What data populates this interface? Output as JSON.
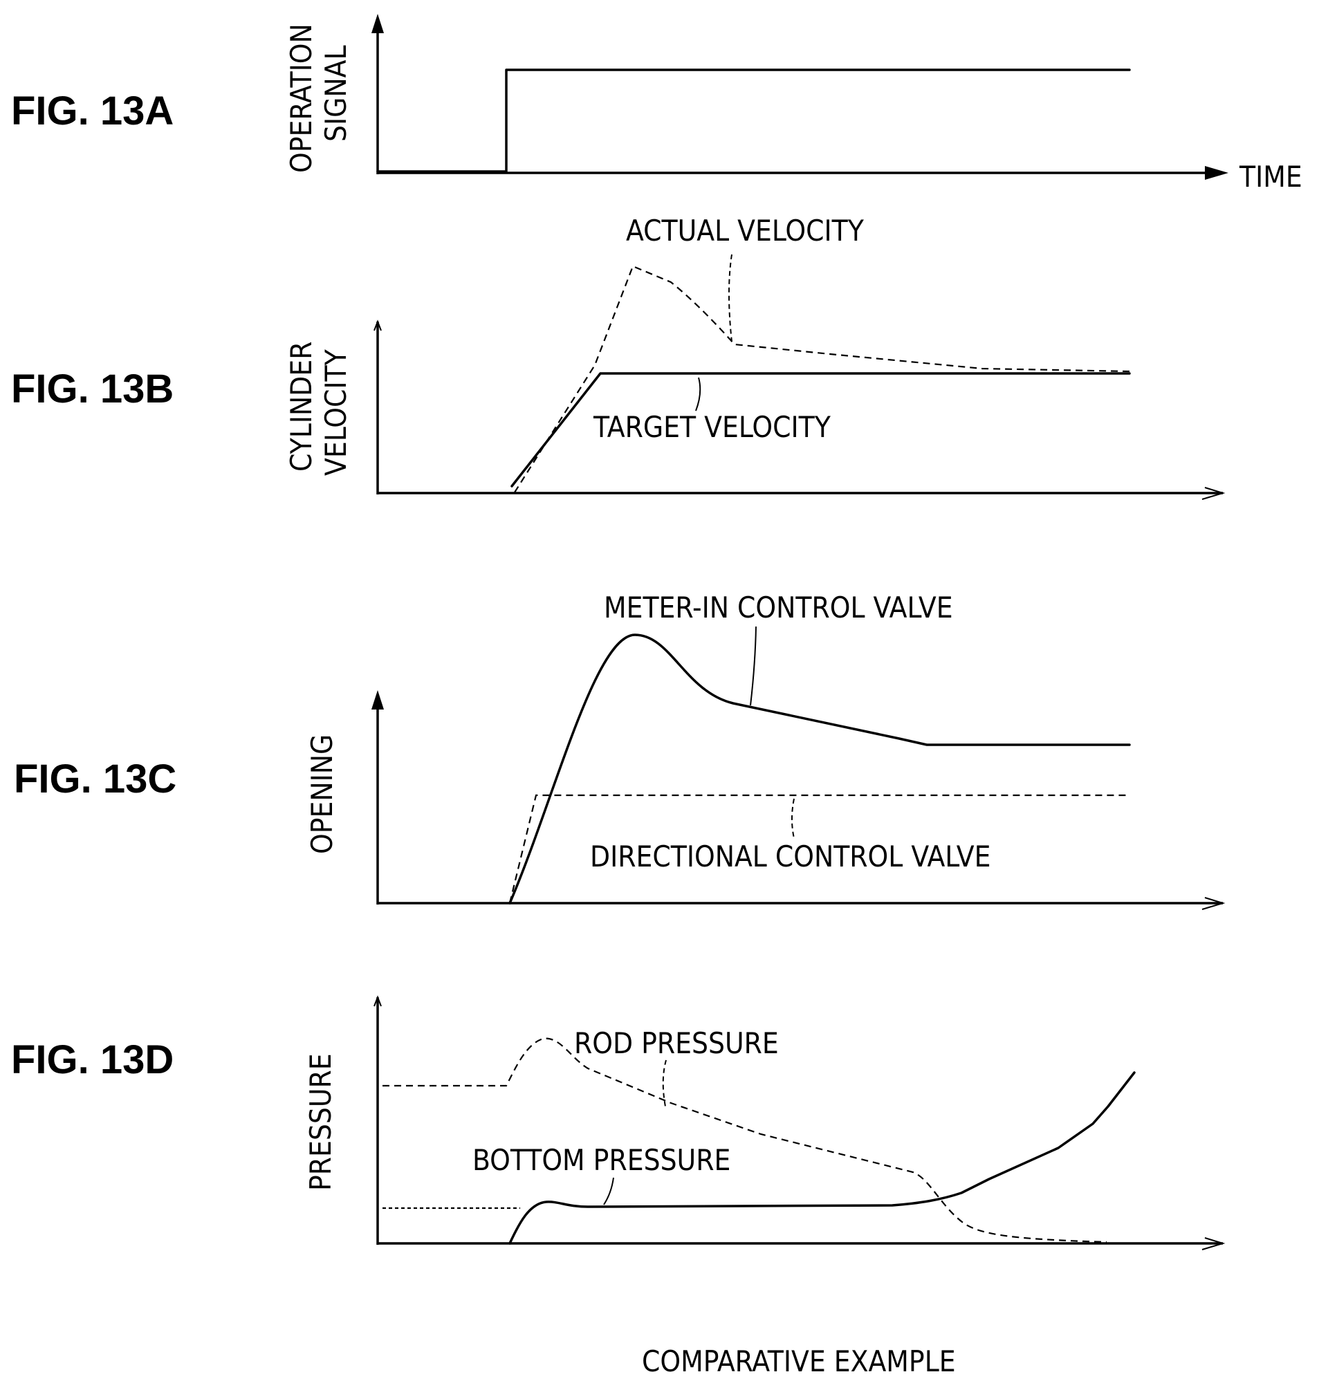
{
  "figures": {
    "a": {
      "label": "FIG. 13A",
      "ylabel_line1": "OPERATION",
      "ylabel_line2": "SIGNAL",
      "xlabel": "TIME"
    },
    "b": {
      "label": "FIG. 13B",
      "ylabel_line1": "CYLINDER",
      "ylabel_line2": "VELOCITY",
      "curve_dashed": "ACTUAL VELOCITY",
      "curve_solid": "TARGET VELOCITY"
    },
    "c": {
      "label": "FIG. 13C",
      "ylabel": "OPENING",
      "curve_solid": "METER-IN CONTROL VALVE",
      "curve_dashed": "DIRECTIONAL CONTROL VALVE"
    },
    "d": {
      "label": "FIG. 13D",
      "ylabel": "PRESSURE",
      "curve_dashed": "ROD PRESSURE",
      "curve_solid": "BOTTOM PRESSURE"
    }
  },
  "caption": "COMPARATIVE EXAMPLE",
  "colors": {
    "ink": "#000000",
    "background": "#ffffff"
  }
}
